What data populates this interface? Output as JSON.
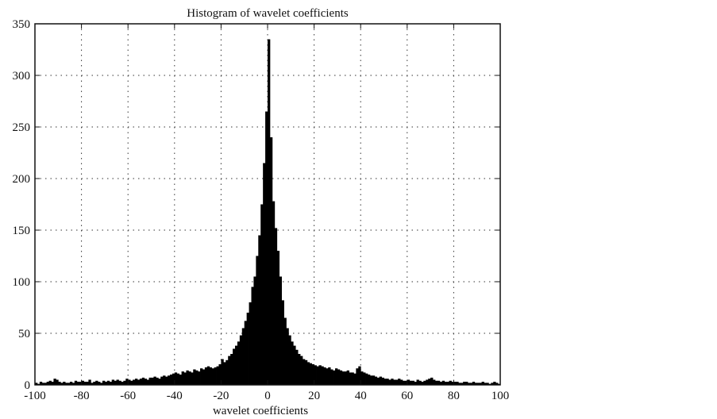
{
  "chart_data": {
    "type": "bar",
    "title": "Histogram of wavelet coefficients",
    "xlabel": "wavelet coefficients",
    "ylabel": "",
    "xlim": [
      -100,
      100
    ],
    "ylim": [
      0,
      350
    ],
    "x_ticks": [
      -100,
      -80,
      -60,
      -40,
      -20,
      0,
      20,
      40,
      60,
      80,
      100
    ],
    "y_ticks": [
      0,
      50,
      100,
      150,
      200,
      250,
      300,
      350
    ],
    "grid": true,
    "bin_width": 1,
    "x": [
      -100,
      -99,
      -98,
      -97,
      -96,
      -95,
      -94,
      -93,
      -92,
      -91,
      -90,
      -89,
      -88,
      -87,
      -86,
      -85,
      -84,
      -83,
      -82,
      -81,
      -80,
      -79,
      -78,
      -77,
      -76,
      -75,
      -74,
      -73,
      -72,
      -71,
      -70,
      -69,
      -68,
      -67,
      -66,
      -65,
      -64,
      -63,
      -62,
      -61,
      -60,
      -59,
      -58,
      -57,
      -56,
      -55,
      -54,
      -53,
      -52,
      -51,
      -50,
      -49,
      -48,
      -47,
      -46,
      -45,
      -44,
      -43,
      -42,
      -41,
      -40,
      -39,
      -38,
      -37,
      -36,
      -35,
      -34,
      -33,
      -32,
      -31,
      -30,
      -29,
      -28,
      -27,
      -26,
      -25,
      -24,
      -23,
      -22,
      -21,
      -20,
      -19,
      -18,
      -17,
      -16,
      -15,
      -14,
      -13,
      -12,
      -11,
      -10,
      -9,
      -8,
      -7,
      -6,
      -5,
      -4,
      -3,
      -2,
      -1,
      0,
      1,
      2,
      3,
      4,
      5,
      6,
      7,
      8,
      9,
      10,
      11,
      12,
      13,
      14,
      15,
      16,
      17,
      18,
      19,
      20,
      21,
      22,
      23,
      24,
      25,
      26,
      27,
      28,
      29,
      30,
      31,
      32,
      33,
      34,
      35,
      36,
      37,
      38,
      39,
      40,
      41,
      42,
      43,
      44,
      45,
      46,
      47,
      48,
      49,
      50,
      51,
      52,
      53,
      54,
      55,
      56,
      57,
      58,
      59,
      60,
      61,
      62,
      63,
      64,
      65,
      66,
      67,
      68,
      69,
      70,
      71,
      72,
      73,
      74,
      75,
      76,
      77,
      78,
      79,
      80,
      81,
      82,
      83,
      84,
      85,
      86,
      87,
      88,
      89,
      90,
      91,
      92,
      93,
      94,
      95,
      96,
      97,
      98,
      99
    ],
    "values": [
      2,
      1,
      3,
      2,
      2,
      3,
      4,
      3,
      6,
      5,
      3,
      2,
      3,
      2,
      2,
      3,
      2,
      4,
      3,
      3,
      4,
      3,
      3,
      5,
      2,
      3,
      4,
      3,
      2,
      4,
      3,
      4,
      3,
      5,
      4,
      5,
      4,
      3,
      4,
      6,
      5,
      4,
      5,
      6,
      5,
      6,
      7,
      6,
      5,
      7,
      7,
      8,
      7,
      6,
      8,
      9,
      8,
      9,
      10,
      11,
      12,
      11,
      10,
      13,
      12,
      14,
      13,
      12,
      15,
      14,
      13,
      16,
      15,
      17,
      18,
      17,
      16,
      17,
      18,
      20,
      25,
      22,
      24,
      28,
      30,
      35,
      38,
      42,
      48,
      55,
      62,
      70,
      80,
      95,
      105,
      125,
      145,
      175,
      215,
      265,
      335,
      240,
      178,
      152,
      130,
      105,
      82,
      65,
      55,
      48,
      42,
      38,
      34,
      30,
      28,
      25,
      24,
      22,
      21,
      20,
      19,
      18,
      19,
      18,
      17,
      16,
      17,
      15,
      14,
      16,
      15,
      14,
      13,
      13,
      14,
      12,
      12,
      11,
      16,
      18,
      13,
      12,
      11,
      10,
      9,
      9,
      8,
      7,
      8,
      7,
      6,
      6,
      5,
      6,
      5,
      5,
      6,
      5,
      4,
      4,
      5,
      4,
      4,
      3,
      5,
      4,
      3,
      4,
      5,
      6,
      7,
      5,
      4,
      4,
      3,
      4,
      3,
      3,
      4,
      3,
      3,
      3,
      2,
      2,
      3,
      3,
      2,
      2,
      3,
      2,
      2,
      2,
      3,
      2,
      2,
      1,
      2,
      3,
      2,
      1
    ]
  }
}
